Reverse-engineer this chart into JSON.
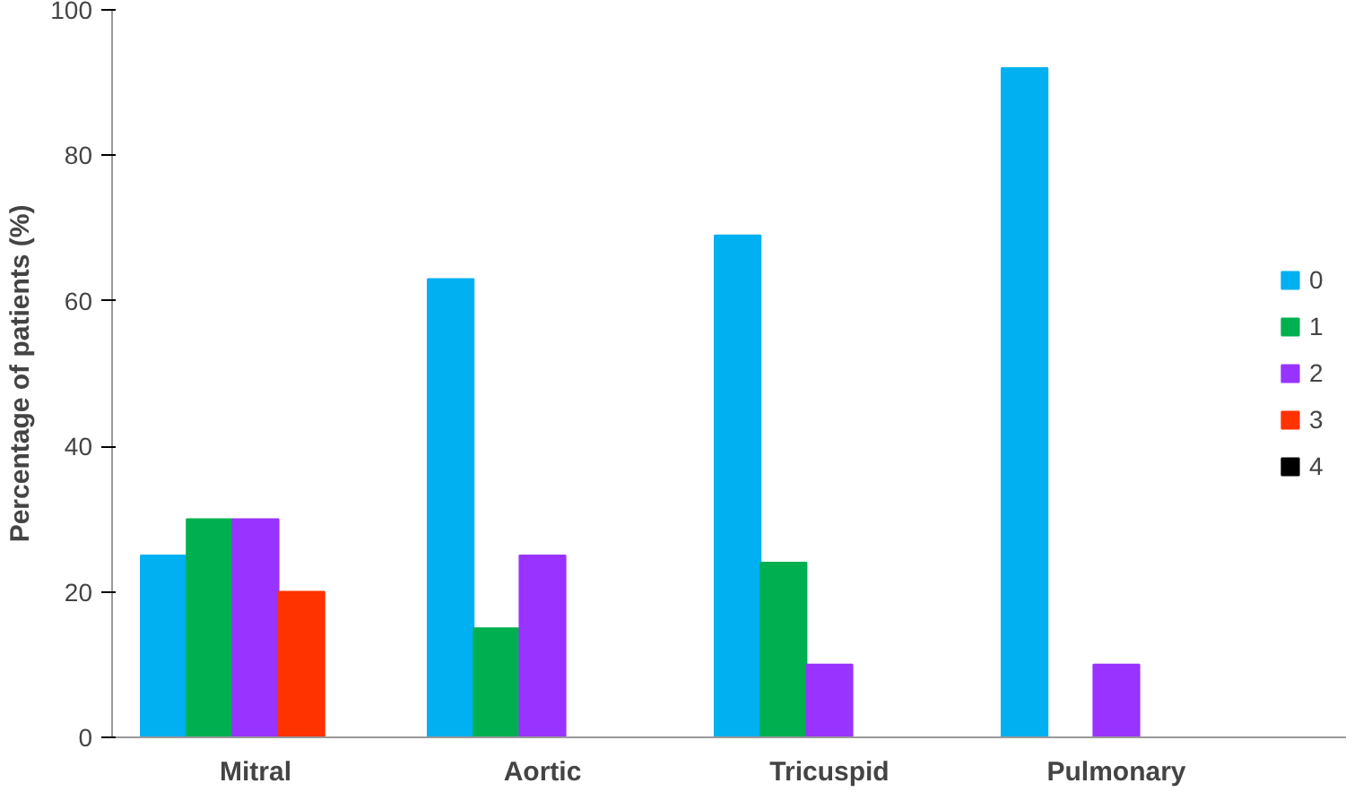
{
  "chart_data": {
    "type": "bar",
    "ylabel": "Percentage of patients (%)",
    "categories": [
      "Mitral",
      "Aortic",
      "Tricuspid",
      "Pulmonary"
    ],
    "series": [
      {
        "name": "0",
        "color": "#00b0f0",
        "values": [
          25,
          63,
          69,
          92
        ]
      },
      {
        "name": "1",
        "color": "#00b050",
        "values": [
          30,
          15,
          24,
          0
        ]
      },
      {
        "name": "2",
        "color": "#9933ff",
        "values": [
          30,
          25,
          10,
          10
        ]
      },
      {
        "name": "3",
        "color": "#ff3300",
        "values": [
          20,
          0,
          0,
          0
        ]
      },
      {
        "name": "4",
        "color": "#000000",
        "values": [
          0,
          0,
          0,
          0
        ]
      }
    ],
    "ylim": [
      0,
      100
    ],
    "yticks": [
      0,
      20,
      40,
      60,
      80,
      100
    ],
    "grid": false,
    "legend": "right"
  }
}
